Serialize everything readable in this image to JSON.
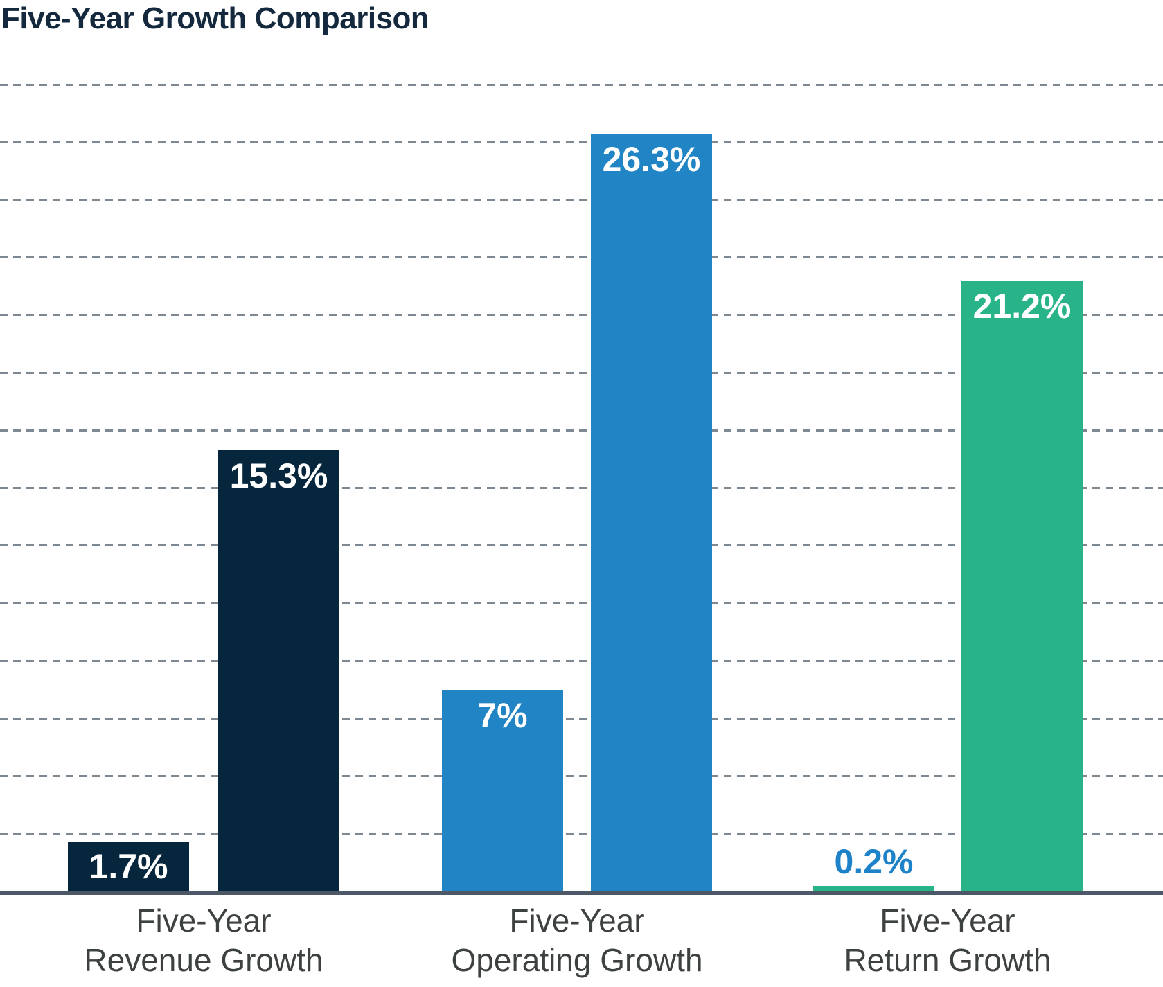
{
  "title": "Five-Year Growth Comparison",
  "colors": {
    "title_text": "#14293d",
    "revenue_bars": "#05263d",
    "operating_bars": "#2084c5",
    "return_bars": "#28b389",
    "value_label_inside": "#ffffff",
    "return_small_value_label": "#1e82c9",
    "category_label_text": "#3d4140",
    "gridline": "#7e8893",
    "axis_line": "#4d5866",
    "background": "#ffffff"
  },
  "chart_data": {
    "type": "bar",
    "title": "Five-Year Growth Comparison",
    "xlabel": "",
    "ylabel": "",
    "ylim": [
      0,
      28
    ],
    "grid_interval": 2,
    "grid": "dashed-horizontal-behind-bars",
    "legend_position": "none",
    "y_tick_labels_visible": false,
    "categories": [
      "Five-Year\nRevenue Growth",
      "Five-Year\nOperating Growth",
      "Five-Year\nReturn Growth"
    ],
    "groups": [
      {
        "category": "Five-Year\nRevenue Growth",
        "color": "#05263d",
        "bars": [
          {
            "value": 1.7,
            "label": "1.7%",
            "label_placement": "inside-middle",
            "label_color": "#ffffff"
          },
          {
            "value": 15.3,
            "label": "15.3%",
            "label_placement": "inside-top",
            "label_color": "#ffffff"
          }
        ]
      },
      {
        "category": "Five-Year\nOperating Growth",
        "color": "#2084c5",
        "bars": [
          {
            "value": 7,
            "label": "7%",
            "label_placement": "inside-top",
            "label_color": "#ffffff"
          },
          {
            "value": 26.3,
            "label": "26.3%",
            "label_placement": "inside-top",
            "label_color": "#ffffff"
          }
        ]
      },
      {
        "category": "Five-Year\nReturn Growth",
        "color": "#28b389",
        "bars": [
          {
            "value": 0.2,
            "label": "0.2%",
            "label_placement": "above",
            "label_color": "#1e82c9"
          },
          {
            "value": 21.2,
            "label": "21.2%",
            "label_placement": "inside-top",
            "label_color": "#ffffff"
          }
        ]
      }
    ]
  }
}
